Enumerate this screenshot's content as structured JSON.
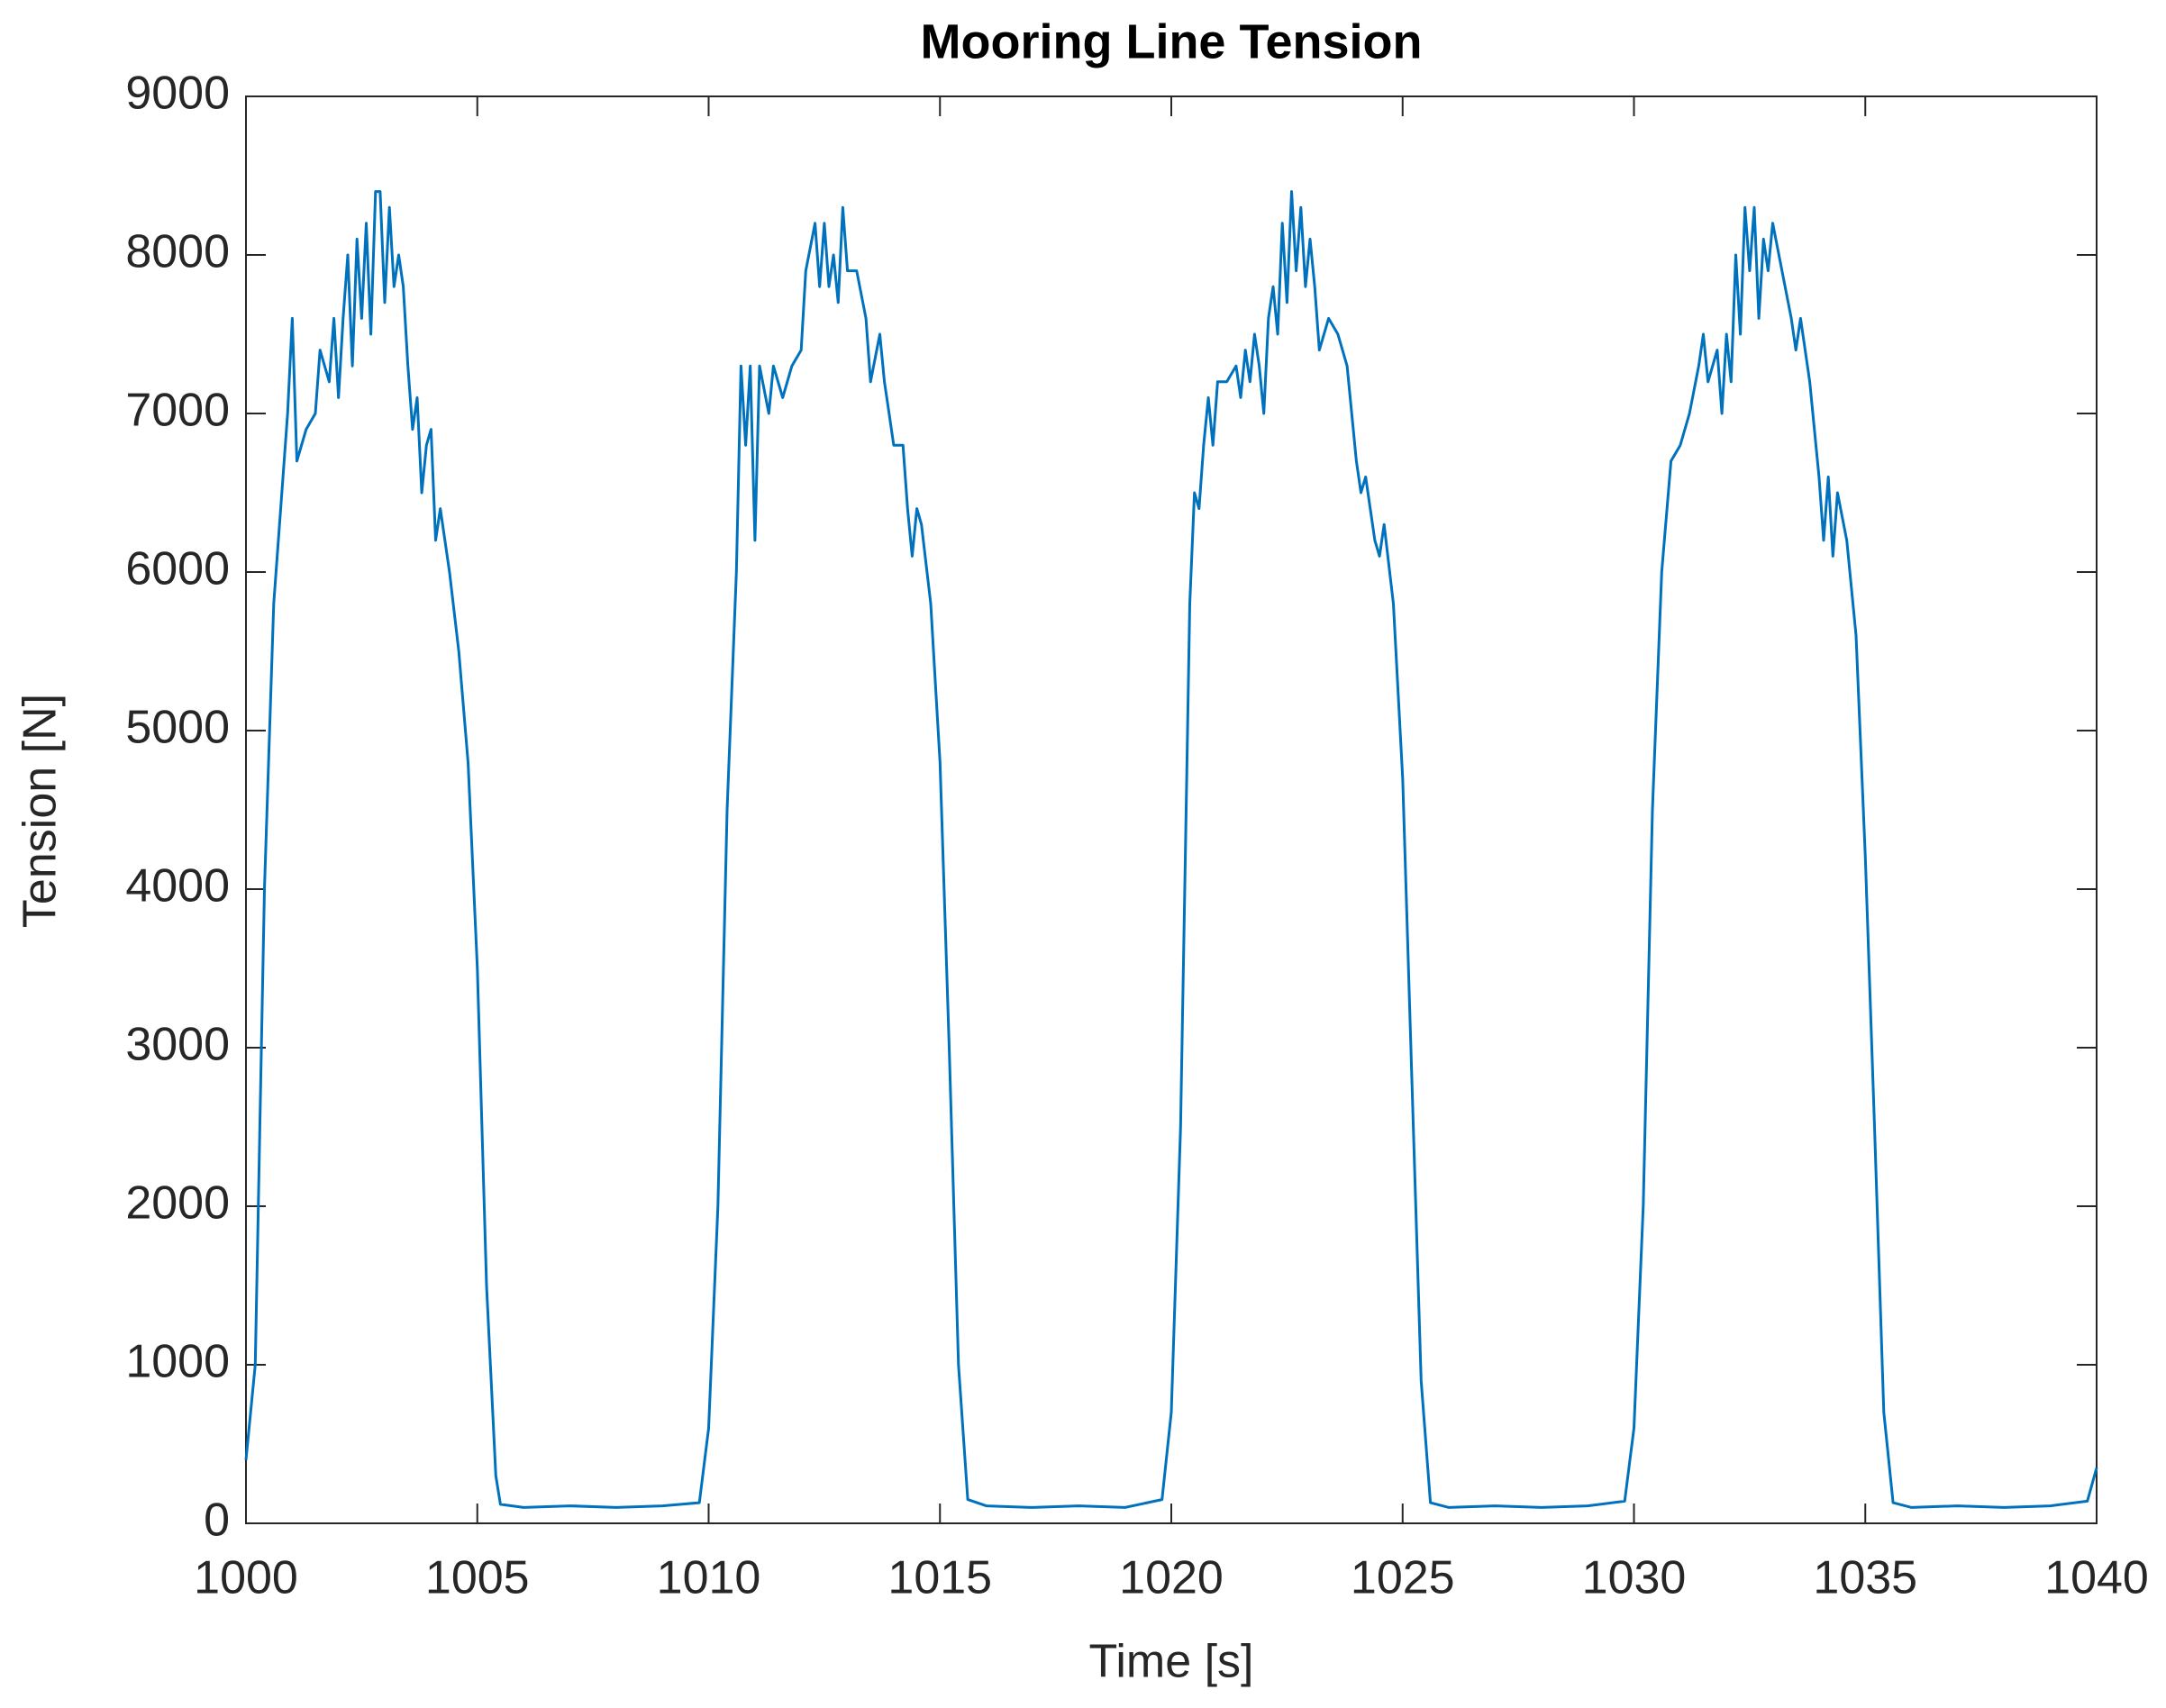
{
  "chart_data": {
    "type": "line",
    "title": "Mooring Line Tension",
    "xlabel": "Time [s]",
    "ylabel": "Tension [N]",
    "xlim": [
      1000,
      1040
    ],
    "xticks": [
      1000,
      1005,
      1010,
      1015,
      1020,
      1025,
      1030,
      1035,
      1040
    ],
    "ylim": [
      0,
      9000
    ],
    "yticks": [
      0,
      1000,
      2000,
      3000,
      4000,
      5000,
      6000,
      7000,
      8000,
      9000
    ],
    "grid": false,
    "x": [
      1000,
      1000.2,
      1000.4,
      1000.6,
      1000.8,
      1000.9,
      1001.0,
      1001.1,
      1001.3,
      1001.5,
      1001.6,
      1001.8,
      1001.9,
      1002.0,
      1002.1,
      1002.2,
      1002.3,
      1002.4,
      1002.5,
      1002.6,
      1002.7,
      1002.8,
      1002.9,
      1003.0,
      1003.1,
      1003.2,
      1003.3,
      1003.4,
      1003.5,
      1003.6,
      1003.7,
      1003.8,
      1003.9,
      1004.0,
      1004.1,
      1004.2,
      1004.4,
      1004.6,
      1004.8,
      1005.0,
      1005.2,
      1005.4,
      1005.5,
      1006,
      1007,
      1008,
      1009,
      1009.8,
      1010,
      1010.2,
      1010.4,
      1010.6,
      1010.7,
      1010.8,
      1010.9,
      1011.0,
      1011.1,
      1011.3,
      1011.4,
      1011.6,
      1011.8,
      1012.0,
      1012.1,
      1012.3,
      1012.4,
      1012.5,
      1012.6,
      1012.7,
      1012.8,
      1012.9,
      1013.0,
      1013.2,
      1013.4,
      1013.5,
      1013.7,
      1013.8,
      1013.9,
      1014.0,
      1014.2,
      1014.3,
      1014.4,
      1014.5,
      1014.6,
      1014.8,
      1015.0,
      1015.2,
      1015.4,
      1015.6,
      1016,
      1017,
      1018,
      1019,
      1019.8,
      1020,
      1020.2,
      1020.4,
      1020.5,
      1020.6,
      1020.7,
      1020.8,
      1020.9,
      1021.0,
      1021.2,
      1021.4,
      1021.5,
      1021.6,
      1021.7,
      1021.8,
      1021.9,
      1022.0,
      1022.1,
      1022.2,
      1022.3,
      1022.4,
      1022.5,
      1022.6,
      1022.7,
      1022.8,
      1022.9,
      1023.0,
      1023.1,
      1023.2,
      1023.4,
      1023.6,
      1023.8,
      1024.0,
      1024.1,
      1024.2,
      1024.4,
      1024.5,
      1024.6,
      1024.8,
      1025.0,
      1025.2,
      1025.4,
      1025.6,
      1026,
      1027,
      1028,
      1029,
      1029.8,
      1030,
      1030.2,
      1030.4,
      1030.6,
      1030.8,
      1031.0,
      1031.2,
      1031.4,
      1031.5,
      1031.6,
      1031.8,
      1031.9,
      1032.0,
      1032.1,
      1032.2,
      1032.3,
      1032.4,
      1032.5,
      1032.6,
      1032.7,
      1032.8,
      1032.9,
      1033.0,
      1033.2,
      1033.4,
      1033.5,
      1033.6,
      1033.8,
      1034.0,
      1034.1,
      1034.2,
      1034.3,
      1034.4,
      1034.6,
      1034.8,
      1035.0,
      1035.2,
      1035.4,
      1035.6,
      1036,
      1037,
      1038,
      1039,
      1039.8,
      1040
    ],
    "series": [
      {
        "color": "#0072bd",
        "values": [
          400,
          1000,
          4000,
          5800,
          6600,
          7000,
          7600,
          6700,
          6900,
          7000,
          7400,
          7200,
          7600,
          7100,
          7600,
          8000,
          7300,
          8100,
          7600,
          8200,
          7500,
          8400,
          8400,
          7700,
          8300,
          7800,
          8000,
          7800,
          7300,
          6900,
          7100,
          6500,
          6800,
          6900,
          6200,
          6400,
          6000,
          5500,
          4800,
          3500,
          1500,
          300,
          120,
          100,
          110,
          100,
          110,
          130,
          600,
          2000,
          4500,
          6000,
          7300,
          6800,
          7300,
          6200,
          7300,
          7000,
          7300,
          7100,
          7300,
          7400,
          7900,
          8200,
          7800,
          8200,
          7800,
          8000,
          7700,
          8300,
          7900,
          7900,
          7600,
          7200,
          7500,
          7200,
          7000,
          6800,
          6800,
          6400,
          6100,
          6400,
          6300,
          5800,
          4800,
          3000,
          1000,
          150,
          110,
          100,
          110,
          100,
          150,
          700,
          2500,
          5800,
          6500,
          6400,
          6800,
          7100,
          6800,
          7200,
          7200,
          7300,
          7100,
          7400,
          7200,
          7500,
          7300,
          7000,
          7600,
          7800,
          7500,
          8200,
          7700,
          8400,
          7900,
          8300,
          7800,
          8100,
          7800,
          7400,
          7600,
          7500,
          7300,
          6700,
          6500,
          6600,
          6200,
          6100,
          6300,
          5800,
          4700,
          2800,
          900,
          130,
          100,
          110,
          100,
          110,
          140,
          600,
          2000,
          4500,
          6000,
          6700,
          6800,
          7000,
          7300,
          7500,
          7200,
          7400,
          7000,
          7500,
          7200,
          8000,
          7500,
          8300,
          7900,
          8300,
          7600,
          8100,
          7900,
          8200,
          7900,
          7600,
          7400,
          7600,
          7200,
          6600,
          6200,
          6600,
          6100,
          6500,
          6200,
          5600,
          4200,
          2500,
          700,
          130,
          100,
          110,
          100,
          110,
          140,
          350
        ]
      }
    ]
  }
}
